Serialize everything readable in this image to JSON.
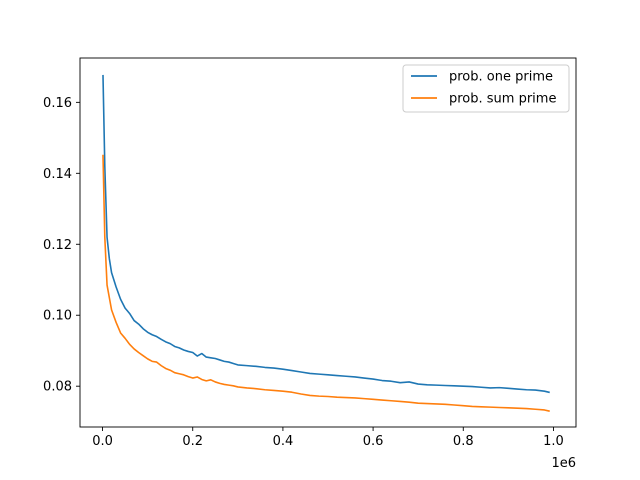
{
  "chart_data": {
    "type": "line",
    "x_offset_label": "1e6",
    "xlim": [
      -0.05,
      1.05
    ],
    "ylim": [
      0.0685,
      0.1725
    ],
    "xticks": [
      0.0,
      0.2,
      0.4,
      0.6,
      0.8,
      1.0
    ],
    "xtick_labels": [
      "0.0",
      "0.2",
      "0.4",
      "0.6",
      "0.8",
      "1.0"
    ],
    "yticks": [
      0.08,
      0.1,
      0.12,
      0.14,
      0.16
    ],
    "ytick_labels": [
      "0.08",
      "0.10",
      "0.12",
      "0.14",
      "0.16"
    ],
    "grid": false,
    "legend_position": "top-right",
    "series": [
      {
        "name": "prob. one prime",
        "color": "#1f77b4",
        "x": [
          0.001,
          0.005,
          0.01,
          0.015,
          0.02,
          0.03,
          0.04,
          0.05,
          0.06,
          0.07,
          0.08,
          0.09,
          0.1,
          0.11,
          0.12,
          0.13,
          0.14,
          0.15,
          0.16,
          0.17,
          0.18,
          0.19,
          0.2,
          0.21,
          0.22,
          0.23,
          0.24,
          0.25,
          0.26,
          0.27,
          0.28,
          0.29,
          0.3,
          0.32,
          0.34,
          0.36,
          0.38,
          0.4,
          0.42,
          0.44,
          0.46,
          0.48,
          0.5,
          0.52,
          0.54,
          0.56,
          0.58,
          0.6,
          0.62,
          0.64,
          0.66,
          0.68,
          0.7,
          0.72,
          0.74,
          0.76,
          0.78,
          0.8,
          0.82,
          0.84,
          0.86,
          0.88,
          0.9,
          0.92,
          0.94,
          0.96,
          0.98,
          0.99
        ],
        "y": [
          0.1675,
          0.142,
          0.122,
          0.116,
          0.112,
          0.108,
          0.1045,
          0.102,
          0.1005,
          0.0985,
          0.0975,
          0.0962,
          0.0952,
          0.0945,
          0.094,
          0.0932,
          0.0925,
          0.092,
          0.0912,
          0.0908,
          0.0902,
          0.0898,
          0.0895,
          0.0885,
          0.0892,
          0.0882,
          0.088,
          0.0878,
          0.0874,
          0.087,
          0.0868,
          0.0864,
          0.086,
          0.0858,
          0.0856,
          0.0853,
          0.0851,
          0.0848,
          0.0844,
          0.084,
          0.0836,
          0.0834,
          0.0832,
          0.083,
          0.0828,
          0.0826,
          0.0823,
          0.082,
          0.0816,
          0.0814,
          0.081,
          0.0812,
          0.0806,
          0.0804,
          0.0803,
          0.0802,
          0.0801,
          0.08,
          0.0799,
          0.0797,
          0.0795,
          0.0796,
          0.0794,
          0.0792,
          0.079,
          0.0789,
          0.0786,
          0.0783
        ]
      },
      {
        "name": "prob. sum prime",
        "color": "#ff7f0e",
        "x": [
          0.001,
          0.005,
          0.01,
          0.015,
          0.02,
          0.03,
          0.04,
          0.05,
          0.06,
          0.07,
          0.08,
          0.09,
          0.1,
          0.11,
          0.12,
          0.13,
          0.14,
          0.15,
          0.16,
          0.17,
          0.18,
          0.19,
          0.2,
          0.21,
          0.22,
          0.23,
          0.24,
          0.25,
          0.26,
          0.27,
          0.28,
          0.29,
          0.3,
          0.32,
          0.34,
          0.36,
          0.38,
          0.4,
          0.42,
          0.44,
          0.46,
          0.48,
          0.5,
          0.52,
          0.54,
          0.56,
          0.58,
          0.6,
          0.62,
          0.64,
          0.66,
          0.68,
          0.7,
          0.72,
          0.74,
          0.76,
          0.78,
          0.8,
          0.82,
          0.84,
          0.86,
          0.88,
          0.9,
          0.92,
          0.94,
          0.96,
          0.98,
          0.99
        ],
        "y": [
          0.145,
          0.122,
          0.1085,
          0.105,
          0.1015,
          0.098,
          0.095,
          0.0935,
          0.0918,
          0.0905,
          0.0895,
          0.0886,
          0.0877,
          0.087,
          0.0868,
          0.0858,
          0.085,
          0.0845,
          0.0838,
          0.0835,
          0.0832,
          0.0827,
          0.0823,
          0.0826,
          0.0819,
          0.0815,
          0.0818,
          0.0812,
          0.0808,
          0.0805,
          0.0803,
          0.0801,
          0.0798,
          0.0795,
          0.0793,
          0.079,
          0.0788,
          0.0786,
          0.0783,
          0.0778,
          0.0774,
          0.0772,
          0.0771,
          0.0769,
          0.0768,
          0.0767,
          0.0765,
          0.0763,
          0.0761,
          0.0759,
          0.0757,
          0.0755,
          0.0752,
          0.0751,
          0.075,
          0.0749,
          0.0747,
          0.0745,
          0.0743,
          0.0742,
          0.0741,
          0.074,
          0.0739,
          0.0738,
          0.0737,
          0.0735,
          0.0733,
          0.073
        ]
      }
    ]
  }
}
